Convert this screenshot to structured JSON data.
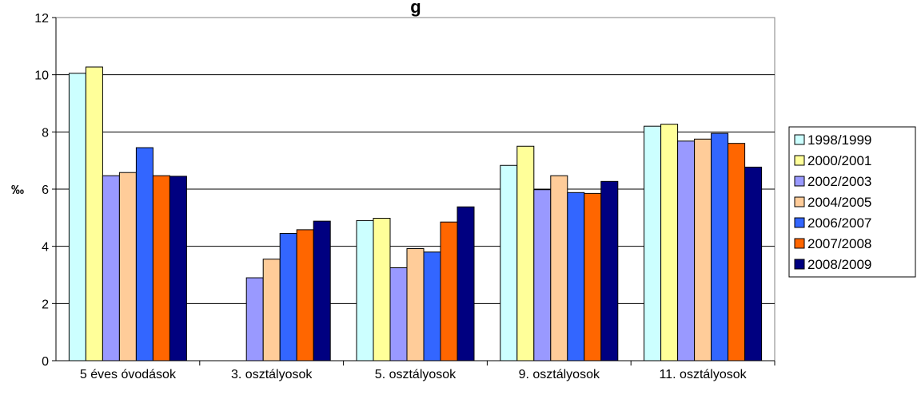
{
  "chart_data": {
    "type": "bar",
    "title": "g",
    "ylabel": "‰",
    "xlabel": "",
    "ylim": [
      0,
      12
    ],
    "yticks": [
      0,
      2,
      4,
      6,
      8,
      10,
      12
    ],
    "grid": true,
    "legend_position": "right",
    "categories": [
      "5 éves óvodások",
      "3. osztályosok",
      "5. osztályosok",
      "9. osztályosok",
      "11. osztályosok"
    ],
    "series": [
      {
        "name": "1998/1999",
        "color": "#CCFFFF",
        "values": [
          10.05,
          null,
          4.9,
          6.83,
          8.2
        ]
      },
      {
        "name": "2000/2001",
        "color": "#FFFF99",
        "values": [
          10.27,
          null,
          4.98,
          7.5,
          8.27
        ]
      },
      {
        "name": "2002/2003",
        "color": "#9999FF",
        "values": [
          6.47,
          2.9,
          3.25,
          5.98,
          7.68
        ]
      },
      {
        "name": "2004/2005",
        "color": "#FFCC99",
        "values": [
          6.58,
          3.55,
          3.92,
          6.47,
          7.75
        ]
      },
      {
        "name": "2006/2007",
        "color": "#3366FF",
        "values": [
          7.45,
          4.45,
          3.8,
          5.88,
          7.95
        ]
      },
      {
        "name": "2007/2008",
        "color": "#FF6600",
        "values": [
          6.47,
          4.58,
          4.85,
          5.85,
          7.6
        ]
      },
      {
        "name": "2008/2009",
        "color": "#000080",
        "values": [
          6.45,
          4.88,
          5.38,
          6.27,
          6.77
        ]
      }
    ]
  }
}
